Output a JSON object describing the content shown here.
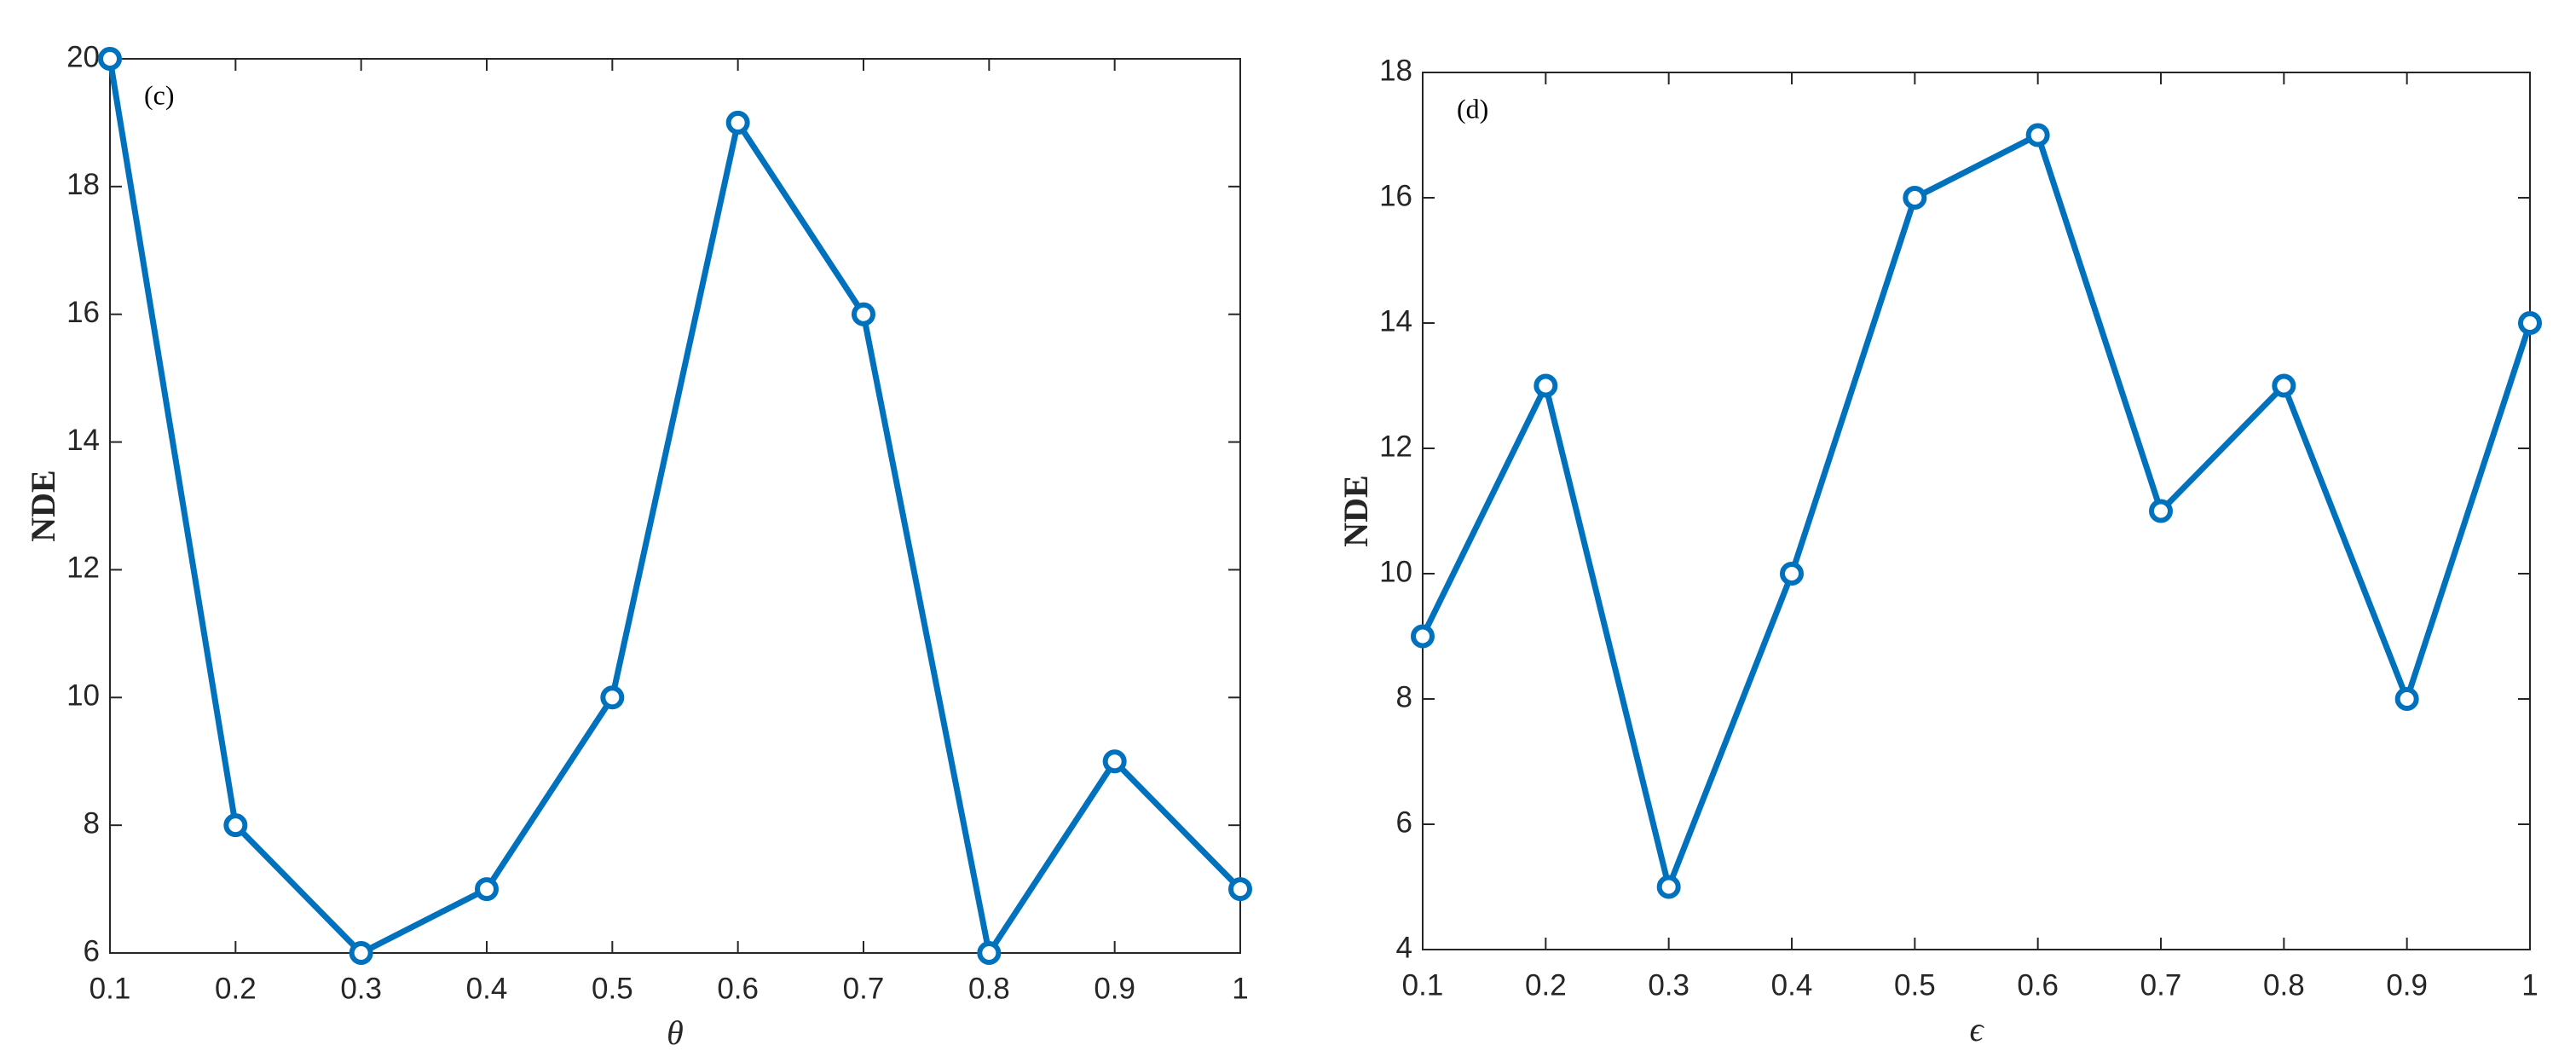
{
  "chart_data": [
    {
      "type": "line",
      "annotation": "(c)",
      "x_label": "θ",
      "y_label": "NDE",
      "x": [
        0.1,
        0.2,
        0.3,
        0.4,
        0.5,
        0.6,
        0.7,
        0.8,
        0.9,
        1
      ],
      "series": [
        {
          "name": "NDE",
          "color": "#0072bd",
          "values": [
            20,
            8,
            6,
            7,
            10,
            19,
            16,
            6,
            9,
            7
          ]
        }
      ],
      "xlim": [
        0.1,
        1
      ],
      "xticks": [
        0.1,
        0.2,
        0.3,
        0.4,
        0.5,
        0.6,
        0.7,
        0.8,
        0.9,
        1
      ],
      "ylim": [
        6,
        20
      ],
      "yticks": [
        6,
        8,
        10,
        12,
        14,
        16,
        18,
        20
      ],
      "marker": "circle",
      "grid": false
    },
    {
      "type": "line",
      "annotation": "(d)",
      "x_label": "ϵ",
      "y_label": "NDE",
      "x": [
        0.1,
        0.2,
        0.3,
        0.4,
        0.5,
        0.6,
        0.7,
        0.8,
        0.9,
        1
      ],
      "series": [
        {
          "name": "NDE",
          "color": "#0072bd",
          "values": [
            9,
            13,
            5,
            10,
            16,
            17,
            11,
            13,
            8,
            14
          ]
        }
      ],
      "xlim": [
        0.1,
        1
      ],
      "xticks": [
        0.1,
        0.2,
        0.3,
        0.4,
        0.5,
        0.6,
        0.7,
        0.8,
        0.9,
        1
      ],
      "ylim": [
        4,
        18
      ],
      "yticks": [
        4,
        6,
        8,
        10,
        12,
        14,
        16,
        18
      ],
      "marker": "circle",
      "grid": false
    }
  ]
}
